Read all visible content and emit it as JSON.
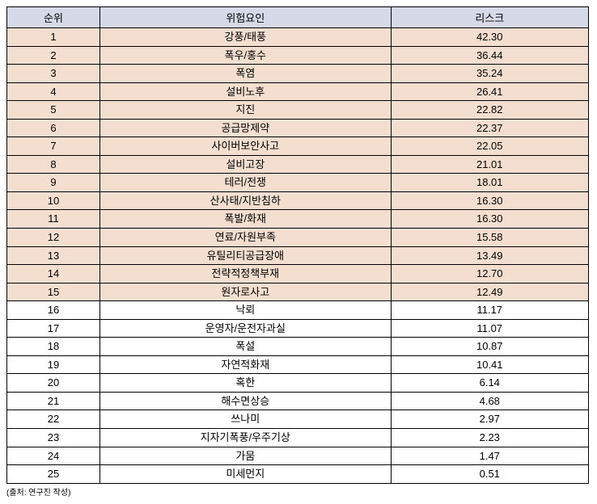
{
  "table": {
    "columns": [
      "순위",
      "위험요인",
      "리스크"
    ],
    "header_bg": "#d5d9e8",
    "highlight_bg": "#f4decf",
    "border_color": "#000000",
    "rows": [
      {
        "rank": "1",
        "factor": "강풍/태풍",
        "risk": "42.30",
        "highlighted": true
      },
      {
        "rank": "2",
        "factor": "폭우/홍수",
        "risk": "36.44",
        "highlighted": true
      },
      {
        "rank": "3",
        "factor": "폭염",
        "risk": "35.24",
        "highlighted": true
      },
      {
        "rank": "4",
        "factor": "설비노후",
        "risk": "26.41",
        "highlighted": true
      },
      {
        "rank": "5",
        "factor": "지진",
        "risk": "22.82",
        "highlighted": true
      },
      {
        "rank": "6",
        "factor": "공급망제약",
        "risk": "22.37",
        "highlighted": true
      },
      {
        "rank": "7",
        "factor": "사이버보안사고",
        "risk": "22.05",
        "highlighted": true
      },
      {
        "rank": "8",
        "factor": "설비고장",
        "risk": "21.01",
        "highlighted": true
      },
      {
        "rank": "9",
        "factor": "테러/전쟁",
        "risk": "18.01",
        "highlighted": true
      },
      {
        "rank": "10",
        "factor": "산사태/지반침하",
        "risk": "16.30",
        "highlighted": true
      },
      {
        "rank": "11",
        "factor": "폭발/화재",
        "risk": "16.30",
        "highlighted": true
      },
      {
        "rank": "12",
        "factor": "연료/자원부족",
        "risk": "15.58",
        "highlighted": true
      },
      {
        "rank": "13",
        "factor": "유틸리티공급장애",
        "risk": "13.49",
        "highlighted": true
      },
      {
        "rank": "14",
        "factor": "전략적정책부재",
        "risk": "12.70",
        "highlighted": true
      },
      {
        "rank": "15",
        "factor": "원자로사고",
        "risk": "12.49",
        "highlighted": true
      },
      {
        "rank": "16",
        "factor": "낙뢰",
        "risk": "11.17",
        "highlighted": false
      },
      {
        "rank": "17",
        "factor": "운영자/운전자과실",
        "risk": "11.07",
        "highlighted": false
      },
      {
        "rank": "18",
        "factor": "폭설",
        "risk": "10.87",
        "highlighted": false
      },
      {
        "rank": "19",
        "factor": "자연적화재",
        "risk": "10.41",
        "highlighted": false
      },
      {
        "rank": "20",
        "factor": "혹한",
        "risk": "6.14",
        "highlighted": false
      },
      {
        "rank": "21",
        "factor": "해수면상승",
        "risk": "4.68",
        "highlighted": false
      },
      {
        "rank": "22",
        "factor": "쓰나미",
        "risk": "2.97",
        "highlighted": false
      },
      {
        "rank": "23",
        "factor": "지자기폭풍/우주기상",
        "risk": "2.23",
        "highlighted": false
      },
      {
        "rank": "24",
        "factor": "가뭄",
        "risk": "1.47",
        "highlighted": false
      },
      {
        "rank": "25",
        "factor": "미세먼지",
        "risk": "0.51",
        "highlighted": false
      }
    ]
  },
  "source": "(출처: 연구진 작성)"
}
